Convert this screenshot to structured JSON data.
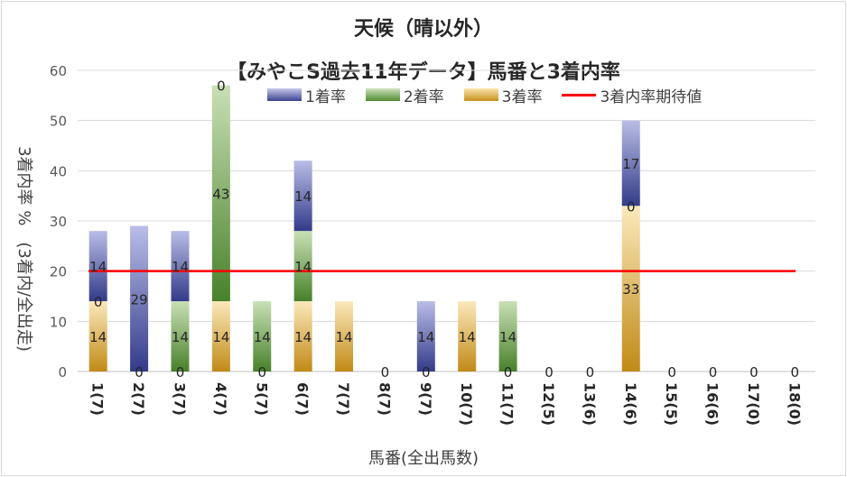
{
  "chart_data": {
    "type": "bar",
    "stacked": true,
    "title": "天候（晴以外）",
    "subtitle": "【みやこS過去11年データ】馬番と3着内率",
    "xlabel": "馬番(全出馬数)",
    "ylabel": "3着内率 %　(3着内/全出走)",
    "ylim": [
      0,
      60
    ],
    "yticks": [
      "0",
      "10",
      "20",
      "30",
      "40",
      "50",
      "60"
    ],
    "categories": [
      "1(7)",
      "2(7)",
      "3(7)",
      "4(7)",
      "5(7)",
      "6(7)",
      "7(7)",
      "8(7)",
      "9(7)",
      "10(7)",
      "11(7)",
      "12(5)",
      "13(6)",
      "14(6)",
      "15(5)",
      "16(6)",
      "17(0)",
      "18(0)"
    ],
    "series": [
      {
        "name": "3着率",
        "values": [
          14,
          0,
          0,
          14,
          0,
          14,
          14,
          0,
          0,
          14,
          0,
          0,
          0,
          33,
          0,
          0,
          0,
          0
        ],
        "labels": [
          "14",
          "0",
          "0",
          "14",
          "0",
          "14",
          "14",
          "0",
          "0",
          "14",
          "0",
          "0",
          "0",
          "33",
          "0",
          "0",
          "0",
          "0"
        ]
      },
      {
        "name": "2着率",
        "values": [
          0,
          0,
          14,
          43,
          14,
          14,
          0,
          0,
          0,
          0,
          14,
          0,
          0,
          0,
          0,
          0,
          0,
          0
        ],
        "labels": [
          "0",
          "",
          "14",
          "43",
          "14",
          "14",
          "",
          "",
          "",
          "",
          "14",
          "",
          "",
          "0",
          "",
          "",
          "",
          ""
        ]
      },
      {
        "name": "1着率",
        "values": [
          14,
          29,
          14,
          0,
          0,
          14,
          0,
          0,
          14,
          0,
          0,
          0,
          0,
          17,
          0,
          0,
          0,
          0
        ],
        "labels": [
          "14",
          "29",
          "14",
          "0",
          "",
          "14",
          "",
          "",
          "14",
          "",
          "",
          "",
          "",
          "17",
          "",
          "",
          "",
          ""
        ]
      }
    ],
    "reference_line": {
      "name": "3着内率期待値",
      "value": 20,
      "color": "#ff0000"
    },
    "legend": [
      "1着率",
      "2着率",
      "3着率",
      "3着内率期待値"
    ]
  },
  "colors": {
    "first": "#3b4390",
    "second": "#4f8a2e",
    "third": "#c7901b",
    "line": "#ff0000"
  }
}
